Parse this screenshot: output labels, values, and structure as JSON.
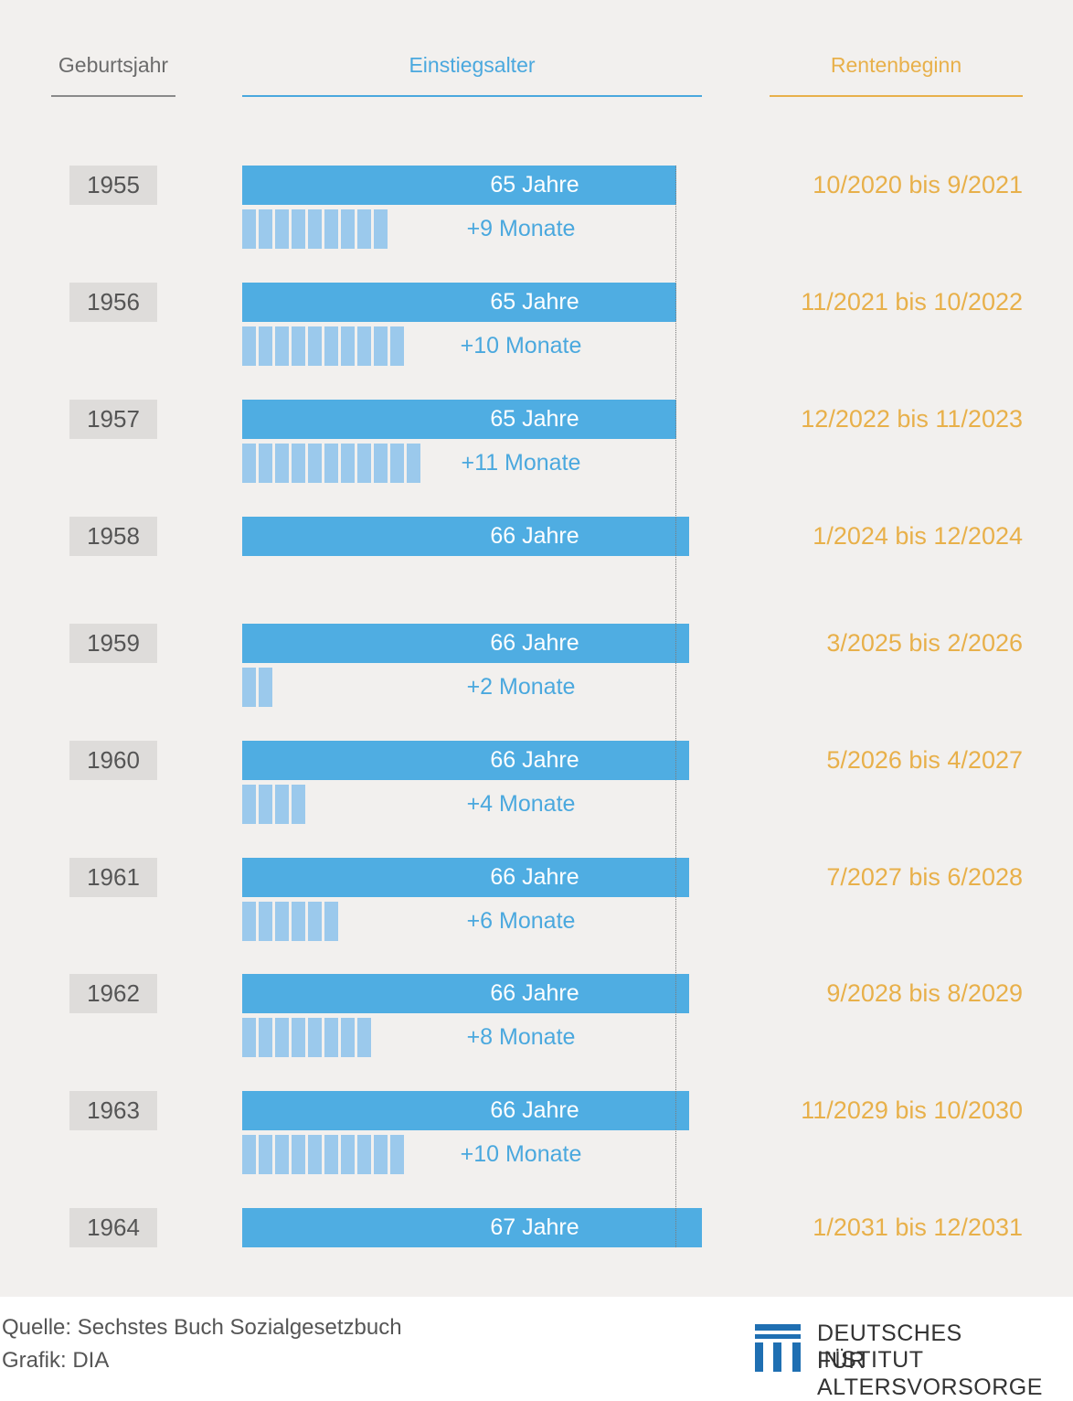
{
  "headers": {
    "year": "Geburtsjahr",
    "age": "Einstiegsalter",
    "retirement": "Rentenbeginn"
  },
  "chart_data": {
    "type": "bar",
    "rows": [
      {
        "year": "1955",
        "years": 65,
        "years_label": "65 Jahre",
        "months": 9,
        "months_label": "+9 Monate",
        "retirement": "10/2020 bis 9/2021"
      },
      {
        "year": "1956",
        "years": 65,
        "years_label": "65 Jahre",
        "months": 10,
        "months_label": "+10 Monate",
        "retirement": "11/2021 bis 10/2022"
      },
      {
        "year": "1957",
        "years": 65,
        "years_label": "65 Jahre",
        "months": 11,
        "months_label": "+11 Monate",
        "retirement": "12/2022 bis 11/2023"
      },
      {
        "year": "1958",
        "years": 66,
        "years_label": "66 Jahre",
        "months": 0,
        "months_label": "",
        "retirement": "1/2024 bis 12/2024"
      },
      {
        "year": "1959",
        "years": 66,
        "years_label": "66 Jahre",
        "months": 2,
        "months_label": "+2 Monate",
        "retirement": "3/2025 bis 2/2026"
      },
      {
        "year": "1960",
        "years": 66,
        "years_label": "66 Jahre",
        "months": 4,
        "months_label": "+4 Monate",
        "retirement": "5/2026 bis 4/2027"
      },
      {
        "year": "1961",
        "years": 66,
        "years_label": "66 Jahre",
        "months": 6,
        "months_label": "+6 Monate",
        "retirement": "7/2027 bis 6/2028"
      },
      {
        "year": "1962",
        "years": 66,
        "years_label": "66 Jahre",
        "months": 8,
        "months_label": "+8 Monate",
        "retirement": "9/2028 bis 8/2029"
      },
      {
        "year": "1963",
        "years": 66,
        "years_label": "66 Jahre",
        "months": 10,
        "months_label": "+10 Monate",
        "retirement": "11/2029 bis 10/2030"
      },
      {
        "year": "1964",
        "years": 67,
        "years_label": "67 Jahre",
        "months": 0,
        "months_label": "",
        "retirement": "1/2031 bis 12/2031"
      }
    ]
  },
  "footer": {
    "source": "Quelle: Sechstes Buch Sozialgesetzbuch",
    "graphic": "Grafik: DIA",
    "logo_line1": "DEUTSCHES INSTITUT",
    "logo_line2": "FÜR ALTERSVORSORGE"
  },
  "colors": {
    "year_bar": "#4fade2",
    "month_block": "#9bc9ec",
    "accent_blue": "#4aa8de",
    "accent_orange": "#e8b04a",
    "background": "#f2f0ee"
  }
}
